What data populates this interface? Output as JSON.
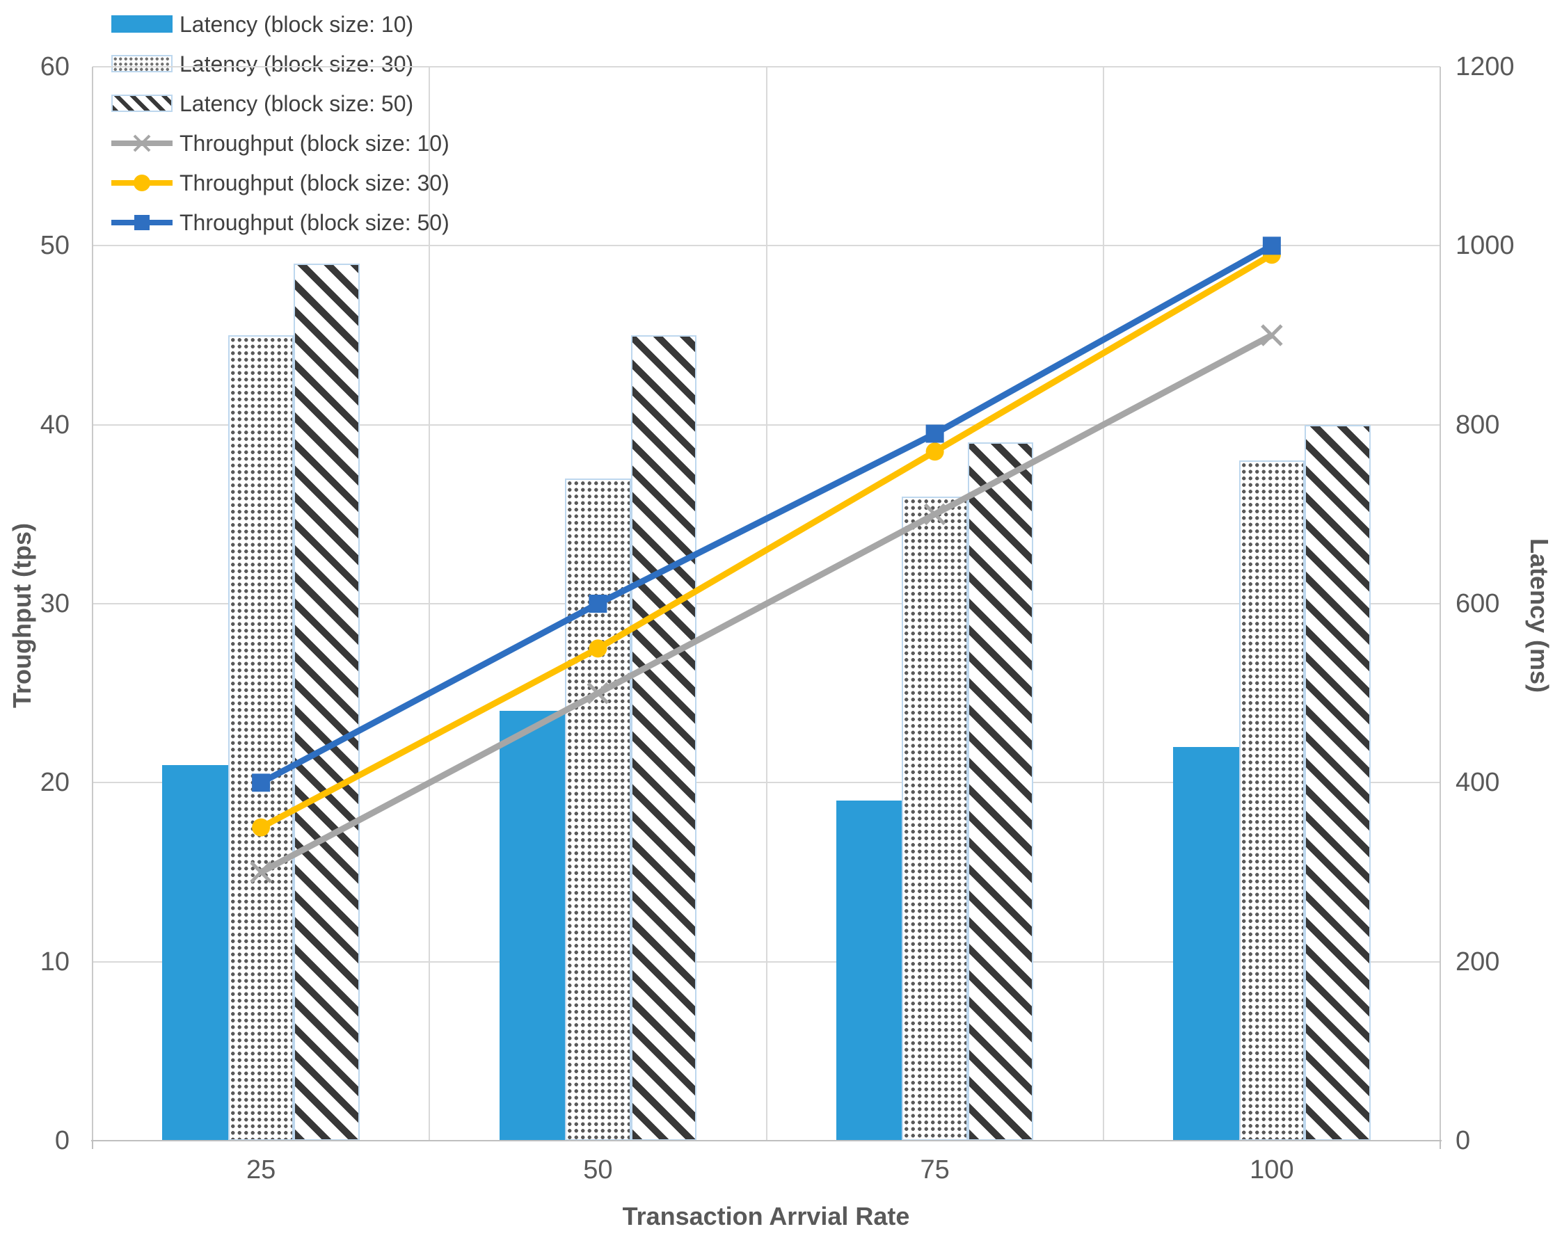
{
  "chart_data": {
    "type": "combo-bar-line-dual-axis",
    "categories": [
      "25",
      "50",
      "75",
      "100"
    ],
    "x_axis": {
      "label": "Transaction Arrvial Rate"
    },
    "left_axis": {
      "label": "Troughput (tps)",
      "min": 0,
      "max": 60,
      "ticks": [
        "0",
        "10",
        "20",
        "30",
        "40",
        "50",
        "60"
      ]
    },
    "right_axis": {
      "label": "Latency (ms)",
      "min": 0,
      "max": 1200,
      "ticks": [
        "0",
        "200",
        "400",
        "600",
        "800",
        "1000",
        "1200"
      ]
    },
    "grid": true,
    "legend_position": "top-left",
    "bar_series": [
      {
        "name": "Latency (block size: 10)",
        "axis": "right",
        "unit": "ms",
        "fill": "solid",
        "color": "#2b9cd8",
        "values": [
          420,
          480,
          380,
          440
        ]
      },
      {
        "name": "Latency (block size: 30)",
        "axis": "right",
        "unit": "ms",
        "fill": "dots",
        "color": "#595959",
        "values": [
          900,
          740,
          720,
          760
        ]
      },
      {
        "name": "Latency (block size: 50)",
        "axis": "right",
        "unit": "ms",
        "fill": "hatch",
        "color": "#383838",
        "values": [
          980,
          900,
          780,
          800
        ]
      }
    ],
    "line_series": [
      {
        "name": "Throughput (block size: 10)",
        "axis": "left",
        "unit": "tps",
        "color": "#a6a6a6",
        "marker": "x",
        "values": [
          15,
          25,
          35,
          45
        ]
      },
      {
        "name": "Throughput (block size: 30)",
        "axis": "left",
        "unit": "tps",
        "color": "#ffc000",
        "marker": "circle",
        "values": [
          17.5,
          27.5,
          38.5,
          49.5
        ]
      },
      {
        "name": "Throughput (block size: 50)",
        "axis": "left",
        "unit": "tps",
        "color": "#2e6fc1",
        "marker": "square",
        "values": [
          20,
          30,
          39.5,
          50
        ]
      }
    ]
  },
  "colors": {
    "grid": "#d9d9d9",
    "axis_line": "#bfbfbf",
    "tick_text": "#595959",
    "legend_text": "#404040",
    "bar_border": "#bdd7ee"
  }
}
